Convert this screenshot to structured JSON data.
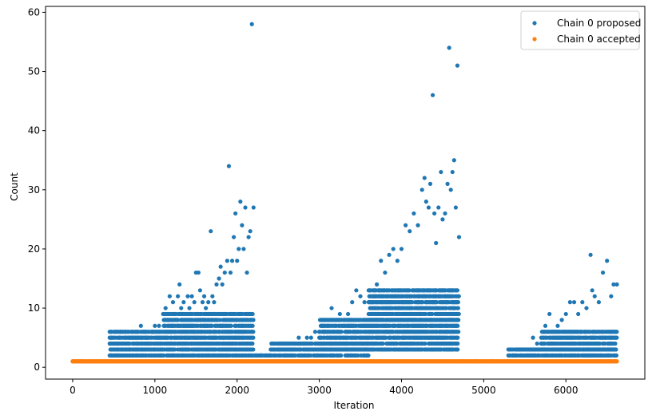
{
  "chart_data": {
    "type": "scatter",
    "title": "",
    "xlabel": "Iteration",
    "ylabel": "Count",
    "xlim": [
      -330,
      6960
    ],
    "ylim": [
      -2,
      61
    ],
    "xticks": [
      0,
      1000,
      2000,
      3000,
      4000,
      5000,
      6000
    ],
    "yticks": [
      0,
      10,
      20,
      30,
      40,
      50,
      60
    ],
    "grid": false,
    "legend_position": "top-right",
    "series": [
      {
        "name": "Chain 0 proposed",
        "color": "#1f77b4",
        "points": [
          [
            0,
            1
          ],
          [
            100,
            1
          ],
          [
            200,
            1
          ],
          [
            300,
            1
          ],
          [
            400,
            1
          ],
          [
            470,
            2
          ],
          [
            500,
            3
          ],
          [
            550,
            2
          ],
          [
            600,
            3
          ],
          [
            650,
            3
          ],
          [
            700,
            3
          ],
          [
            750,
            3
          ],
          [
            780,
            4
          ],
          [
            800,
            3
          ],
          [
            830,
            7
          ],
          [
            850,
            4
          ],
          [
            880,
            3
          ],
          [
            900,
            5
          ],
          [
            920,
            4
          ],
          [
            950,
            5
          ],
          [
            980,
            6
          ],
          [
            1000,
            7
          ],
          [
            1020,
            6
          ],
          [
            1050,
            7
          ],
          [
            1080,
            5
          ],
          [
            1100,
            6
          ],
          [
            1130,
            10
          ],
          [
            1150,
            8
          ],
          [
            1180,
            12
          ],
          [
            1200,
            9
          ],
          [
            1220,
            11
          ],
          [
            1250,
            8
          ],
          [
            1280,
            12
          ],
          [
            1300,
            14
          ],
          [
            1320,
            10
          ],
          [
            1350,
            11
          ],
          [
            1380,
            9
          ],
          [
            1400,
            12
          ],
          [
            1420,
            10
          ],
          [
            1450,
            12
          ],
          [
            1480,
            11
          ],
          [
            1500,
            16
          ],
          [
            1530,
            16
          ],
          [
            1550,
            13
          ],
          [
            1580,
            11
          ],
          [
            1600,
            12
          ],
          [
            1620,
            10
          ],
          [
            1650,
            11
          ],
          [
            1680,
            23
          ],
          [
            1700,
            12
          ],
          [
            1720,
            11
          ],
          [
            1750,
            14
          ],
          [
            1780,
            15
          ],
          [
            1800,
            17
          ],
          [
            1820,
            14
          ],
          [
            1850,
            16
          ],
          [
            1880,
            18
          ],
          [
            1900,
            34
          ],
          [
            1920,
            16
          ],
          [
            1940,
            18
          ],
          [
            1960,
            22
          ],
          [
            1980,
            26
          ],
          [
            2000,
            18
          ],
          [
            2020,
            20
          ],
          [
            2040,
            28
          ],
          [
            2060,
            24
          ],
          [
            2080,
            20
          ],
          [
            2100,
            27
          ],
          [
            2120,
            16
          ],
          [
            2140,
            22
          ],
          [
            2160,
            23
          ],
          [
            2180,
            58
          ],
          [
            2200,
            27
          ],
          [
            2220,
            2
          ],
          [
            2300,
            2
          ],
          [
            2400,
            2
          ],
          [
            2450,
            3
          ],
          [
            2500,
            3
          ],
          [
            2550,
            4
          ],
          [
            2600,
            3
          ],
          [
            2650,
            4
          ],
          [
            2700,
            3
          ],
          [
            2750,
            5
          ],
          [
            2800,
            4
          ],
          [
            2850,
            5
          ],
          [
            2900,
            5
          ],
          [
            2950,
            6
          ],
          [
            3000,
            6
          ],
          [
            3050,
            6
          ],
          [
            3100,
            8
          ],
          [
            3150,
            10
          ],
          [
            3200,
            8
          ],
          [
            3250,
            9
          ],
          [
            3300,
            8
          ],
          [
            3350,
            9
          ],
          [
            3400,
            11
          ],
          [
            3450,
            13
          ],
          [
            3500,
            12
          ],
          [
            3550,
            11
          ],
          [
            3600,
            13
          ],
          [
            3650,
            12
          ],
          [
            3700,
            14
          ],
          [
            3750,
            18
          ],
          [
            3800,
            16
          ],
          [
            3850,
            19
          ],
          [
            3900,
            20
          ],
          [
            3950,
            18
          ],
          [
            4000,
            20
          ],
          [
            4050,
            24
          ],
          [
            4100,
            23
          ],
          [
            4150,
            26
          ],
          [
            4200,
            24
          ],
          [
            4250,
            30
          ],
          [
            4280,
            32
          ],
          [
            4300,
            28
          ],
          [
            4330,
            27
          ],
          [
            4350,
            31
          ],
          [
            4380,
            46
          ],
          [
            4400,
            26
          ],
          [
            4420,
            21
          ],
          [
            4450,
            27
          ],
          [
            4480,
            33
          ],
          [
            4500,
            25
          ],
          [
            4530,
            26
          ],
          [
            4560,
            31
          ],
          [
            4580,
            54
          ],
          [
            4600,
            30
          ],
          [
            4620,
            33
          ],
          [
            4640,
            35
          ],
          [
            4660,
            27
          ],
          [
            4680,
            51
          ],
          [
            4700,
            22
          ],
          [
            4750,
            1
          ],
          [
            4900,
            1
          ],
          [
            5100,
            1
          ],
          [
            5300,
            2
          ],
          [
            5350,
            2
          ],
          [
            5400,
            3
          ],
          [
            5450,
            2
          ],
          [
            5500,
            3
          ],
          [
            5550,
            3
          ],
          [
            5600,
            5
          ],
          [
            5650,
            4
          ],
          [
            5700,
            4
          ],
          [
            5750,
            7
          ],
          [
            5800,
            9
          ],
          [
            5850,
            6
          ],
          [
            5900,
            7
          ],
          [
            5950,
            8
          ],
          [
            6000,
            9
          ],
          [
            6050,
            11
          ],
          [
            6100,
            11
          ],
          [
            6150,
            9
          ],
          [
            6200,
            11
          ],
          [
            6250,
            10
          ],
          [
            6300,
            19
          ],
          [
            6320,
            13
          ],
          [
            6350,
            12
          ],
          [
            6400,
            11
          ],
          [
            6450,
            16
          ],
          [
            6500,
            18
          ],
          [
            6550,
            12
          ],
          [
            6580,
            14
          ],
          [
            6620,
            14
          ]
        ],
        "bands": [
          [
            450,
            2200,
            2,
            6
          ],
          [
            1100,
            2200,
            7,
            9
          ],
          [
            2220,
            2400,
            2,
            2
          ],
          [
            2400,
            3600,
            2,
            4
          ],
          [
            3000,
            4700,
            3,
            8
          ],
          [
            3600,
            4700,
            8,
            13
          ],
          [
            5300,
            6620,
            2,
            3
          ],
          [
            5700,
            6620,
            3,
            6
          ]
        ]
      },
      {
        "name": "Chain 0 accepted",
        "color": "#ff7f0e",
        "points": [
          [
            0,
            1
          ],
          [
            6620,
            1
          ]
        ],
        "bands": [
          [
            0,
            6620,
            1,
            1
          ]
        ]
      }
    ]
  }
}
